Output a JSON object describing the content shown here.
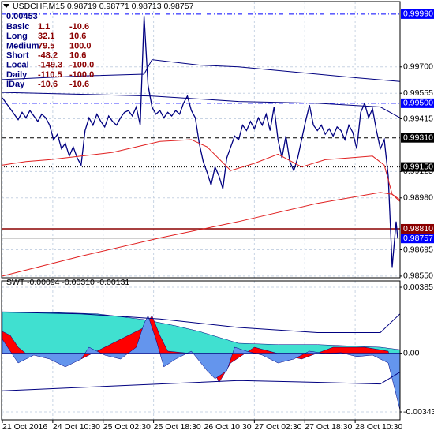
{
  "chart_data": [
    {
      "type": "line",
      "title": "USDCHF,M15  0.98719 0.98771 0.98713 0.98757",
      "info": {
        "value": "0.00453",
        "rows": [
          [
            "Basic",
            "1.1",
            "-10.6"
          ],
          [
            "Long",
            "32.1",
            "10.6"
          ],
          [
            "Medium",
            "79.5",
            "100.0"
          ],
          [
            "Short",
            "-48.2",
            "10.6"
          ],
          [
            "Local",
            "-149.3",
            "-100.0"
          ],
          [
            "Daily",
            "-110.5",
            "-100.0"
          ],
          [
            "IDay",
            "-10.6",
            "-10.6"
          ]
        ]
      },
      "xlim": [
        0,
        505
      ],
      "xticks": [
        {
          "value": 0,
          "label": "21 Oct 2016"
        },
        {
          "value": 64,
          "label": "24 Oct 10:30"
        },
        {
          "value": 128,
          "label": "25 Oct 02:30"
        },
        {
          "value": 192,
          "label": "25 Oct 18:30"
        },
        {
          "value": 256,
          "label": "26 Oct 10:30"
        },
        {
          "value": 320,
          "label": "27 Oct 02:30"
        },
        {
          "value": 384,
          "label": "27 Oct 18:30"
        },
        {
          "value": 448,
          "label": "28 Oct 10:30"
        }
      ],
      "ylim": [
        0.98541,
        1.00059
      ],
      "yticks": [
        {
          "value": 0.9855,
          "label": "0.98550"
        },
        {
          "value": 0.98695,
          "label": "0.98695"
        },
        {
          "value": 0.9898,
          "label": "0.98980"
        },
        {
          "value": 0.99125,
          "label": "0.99125"
        },
        {
          "value": 0.99415,
          "label": "0.99415"
        },
        {
          "value": 0.99555,
          "label": "0.99555"
        },
        {
          "value": 0.997,
          "label": "0.99700"
        }
      ],
      "grid": true,
      "levels": [
        {
          "value": 0.9999,
          "label": "0.99990",
          "color": "#0000ff",
          "line_color": "#0000ff",
          "style": "dashdot"
        },
        {
          "value": 0.995,
          "label": "0.99500",
          "color": "#0000ff",
          "line_color": "#0000ff",
          "style": "dashdot"
        },
        {
          "value": 0.9931,
          "label": "0.99310",
          "color": "#000000",
          "line_color": "#000000",
          "style": "dashed"
        },
        {
          "value": 0.9915,
          "label": "0.99150",
          "color": "#000000",
          "line_color": "#000000",
          "style": "dotted"
        },
        {
          "value": 0.9881,
          "label": "0.98810",
          "color": "#8b0000",
          "line_color": "#8b0000",
          "style": "solid"
        },
        {
          "value": 0.98757,
          "label": "0.98757",
          "color": "#0000ff",
          "line_color": "#c0c0c0",
          "style": "solid"
        }
      ],
      "series": [
        {
          "color": "#000080",
          "width": 1.3,
          "x": [
            0,
            5,
            10,
            15,
            20,
            25,
            30,
            35,
            40,
            45,
            50,
            55,
            60,
            65,
            70,
            75,
            80,
            85,
            90,
            95,
            100,
            105,
            110,
            115,
            120,
            125,
            130,
            135,
            140,
            145,
            150,
            155,
            160,
            165,
            170,
            175,
            180,
            185,
            190,
            195,
            200,
            205,
            210,
            215,
            220,
            225,
            230,
            235,
            240,
            245,
            250,
            255,
            260,
            265,
            270,
            275,
            280,
            285,
            290,
            295,
            300,
            305,
            310,
            315,
            320,
            325,
            330,
            335,
            340,
            345,
            350,
            355,
            360,
            365,
            370,
            375,
            380,
            385,
            390,
            395,
            400,
            405,
            410,
            415,
            420,
            425,
            430,
            435,
            440,
            445,
            450,
            455,
            460,
            465,
            470,
            475,
            480,
            485,
            490,
            495,
            500,
            502
          ],
          "values": [
            0.9953,
            0.995,
            0.9947,
            0.9944,
            0.9941,
            0.9945,
            0.9942,
            0.9946,
            0.9943,
            0.994,
            0.9944,
            0.9942,
            0.9938,
            0.993,
            0.9933,
            0.9925,
            0.9928,
            0.9921,
            0.9926,
            0.992,
            0.9916,
            0.9935,
            0.9942,
            0.9938,
            0.9944,
            0.994,
            0.9937,
            0.9943,
            0.994,
            0.9938,
            0.9942,
            0.9945,
            0.9946,
            0.9943,
            0.9948,
            0.9938,
            0.9998,
            0.996,
            0.9948,
            0.9944,
            0.9946,
            0.9942,
            0.9945,
            0.9943,
            0.9946,
            0.9944,
            0.995,
            0.9954,
            0.9946,
            0.9942,
            0.9928,
            0.9918,
            0.9912,
            0.9905,
            0.9915,
            0.991,
            0.9903,
            0.992,
            0.9926,
            0.9932,
            0.993,
            0.9938,
            0.9935,
            0.994,
            0.9936,
            0.9942,
            0.9938,
            0.9944,
            0.9935,
            0.9948,
            0.993,
            0.992,
            0.9932,
            0.9918,
            0.9913,
            0.992,
            0.993,
            0.994,
            0.9949,
            0.9938,
            0.9935,
            0.9938,
            0.9933,
            0.9936,
            0.9932,
            0.9937,
            0.9935,
            0.993,
            0.9938,
            0.9934,
            0.9925,
            0.9945,
            0.995,
            0.9942,
            0.9947,
            0.9935,
            0.9925,
            0.993,
            0.991,
            0.986,
            0.9885,
            0.98757
          ]
        },
        {
          "color": "#e02020",
          "width": 1,
          "x": [
            0,
            30,
            60,
            100,
            140,
            180,
            200,
            240,
            260,
            290,
            320,
            350,
            380,
            410,
            440,
            470,
            485,
            495,
            505
          ],
          "values": [
            0.9916,
            0.9918,
            0.9919,
            0.9921,
            0.9923,
            0.9927,
            0.9929,
            0.993,
            0.9926,
            0.9913,
            0.9917,
            0.9922,
            0.9915,
            0.9919,
            0.992,
            0.9921,
            0.9916,
            0.99,
            0.9896
          ]
        },
        {
          "color": "#e02020",
          "width": 1,
          "x": [
            0,
            100,
            200,
            300,
            400,
            480,
            495,
            505
          ],
          "values": [
            0.9855,
            0.9866,
            0.9876,
            0.9885,
            0.9895,
            0.9901,
            0.99,
            0.9897
          ]
        },
        {
          "color": "#000080",
          "width": 1,
          "x": [
            0,
            100,
            180,
            190,
            250,
            300,
            350,
            400,
            450,
            505
          ],
          "values": [
            0.9963,
            0.9965,
            0.9966,
            0.9974,
            0.9971,
            0.997,
            0.9968,
            0.9966,
            0.9964,
            0.9962
          ]
        },
        {
          "color": "#000080",
          "width": 1,
          "x": [
            0,
            190,
            300,
            400,
            480,
            505
          ],
          "values": [
            0.9956,
            0.9954,
            0.9951,
            0.995,
            0.9948,
            0.9942
          ]
        }
      ]
    },
    {
      "type": "area",
      "title": "SWT -0.00094 -0.00310 -0.00131",
      "ylim": [
        -0.00389,
        0.00422
      ],
      "yticks": [
        -0.00343,
        {
          "value": 0,
          "label": "0.00"
        },
        0.00385
      ],
      "grid": true,
      "series": [
        {
          "color": "#40e0d0",
          "fill": true,
          "x": [
            0,
            60,
            120,
            180,
            220,
            250,
            300,
            350,
            400,
            480,
            505
          ],
          "values": [
            0.00242,
            0.00238,
            0.0023,
            0.00196,
            0.0016,
            0.00127,
            0.00058,
            0.0005,
            0.0005,
            0.00035,
            0.0002
          ]
        },
        {
          "color": "#ff0000",
          "fill": true,
          "x": [
            0,
            10,
            20,
            30,
            100,
            180,
            190,
            200,
            210,
            260,
            275,
            290,
            320,
            350,
            380,
            420,
            460,
            490,
            500,
            505
          ],
          "values": [
            0.00127,
            0.00104,
            0.00035,
            -2e-05,
            -0.00034,
            0.0015,
            0.00219,
            0.00104,
            0.00012,
            -0.00011,
            -0.00172,
            -0.00057,
            0.00035,
            -2e-05,
            -0.00034,
            0.00035,
            0.00035,
            0.00012,
            -0.00149,
            -0.00241
          ]
        },
        {
          "color": "#6495ed",
          "fill": true,
          "x": [
            0,
            10,
            20,
            30,
            40,
            60,
            80,
            100,
            110,
            130,
            150,
            170,
            180,
            185,
            195,
            205,
            220,
            240,
            260,
            270,
            285,
            295,
            310,
            330,
            350,
            370,
            390,
            410,
            430,
            450,
            470,
            490,
            500,
            505
          ],
          "values": [
            0.00081,
            0.00012,
            -0.00057,
            -0.00034,
            -0.00011,
            -0.00034,
            -0.0008,
            -0.00034,
            0.00035,
            -0.00011,
            -0.00034,
            0.00035,
            0.00173,
            0.00219,
            0.00081,
            -0.0008,
            -0.00034,
            0.00012,
            -0.00103,
            -0.00149,
            -0.00103,
            0.00035,
            0.00012,
            -0.00011,
            -0.00057,
            -0.00034,
            0.00012,
            -2e-05,
            3e-05,
            -0.0002,
            -0.00011,
            -0.00057,
            -0.00241,
            -0.00333
          ]
        },
        {
          "color": "#000080",
          "fill": false,
          "x": [
            0,
            100,
            200,
            300,
            400,
            480,
            505
          ],
          "values": [
            0.0024,
            0.0023,
            0.002,
            0.0015,
            0.0012,
            0.0012,
            0.0023
          ]
        },
        {
          "color": "#000080",
          "fill": false,
          "x": [
            0,
            150,
            300,
            400,
            480,
            505
          ],
          "values": [
            -0.0022,
            -0.0019,
            -0.0016,
            -0.0017,
            -0.0018,
            -0.0011
          ]
        }
      ]
    }
  ]
}
